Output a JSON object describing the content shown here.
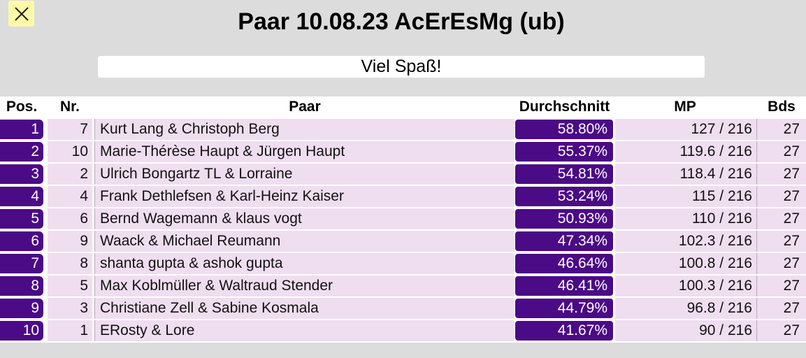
{
  "title": "Paar 10.08.23 AcErEsMg (ub)",
  "banner": "Viel Spaß!",
  "icons": {
    "close": "close-icon"
  },
  "colors": {
    "accent": "#4b0a86",
    "row_bg": "#efdeef",
    "close_bg": "#fdf9a8"
  },
  "table": {
    "headers": {
      "pos": "Pos.",
      "nr": "Nr.",
      "paar": "Paar",
      "avg": "Durchschnitt",
      "mp": "MP",
      "bds": "Bds"
    },
    "rows": [
      {
        "pos": "1",
        "nr": "7",
        "paar": "Kurt Lang & Christoph Berg",
        "avg": "58.80%",
        "mp": "127 / 216",
        "bds": "27"
      },
      {
        "pos": "2",
        "nr": "10",
        "paar": "Marie-Thérèse Haupt & Jürgen Haupt",
        "avg": "55.37%",
        "mp": "119.6 / 216",
        "bds": "27"
      },
      {
        "pos": "3",
        "nr": "2",
        "paar": "Ulrich Bongartz TL & Lorraine",
        "avg": "54.81%",
        "mp": "118.4 / 216",
        "bds": "27"
      },
      {
        "pos": "4",
        "nr": "4",
        "paar": "Frank Dethlefsen & Karl-Heinz Kaiser",
        "avg": "53.24%",
        "mp": "115 / 216",
        "bds": "27"
      },
      {
        "pos": "5",
        "nr": "6",
        "paar": "Bernd Wagemann & klaus vogt",
        "avg": "50.93%",
        "mp": "110 / 216",
        "bds": "27"
      },
      {
        "pos": "6",
        "nr": "9",
        "paar": "Waack & Michael Reumann",
        "avg": "47.34%",
        "mp": "102.3 / 216",
        "bds": "27"
      },
      {
        "pos": "7",
        "nr": "8",
        "paar": "shanta gupta & ashok gupta",
        "avg": "46.64%",
        "mp": "100.8 / 216",
        "bds": "27"
      },
      {
        "pos": "8",
        "nr": "5",
        "paar": "Max Koblmüller & Waltraud Stender",
        "avg": "46.41%",
        "mp": "100.3 / 216",
        "bds": "27"
      },
      {
        "pos": "9",
        "nr": "3",
        "paar": "Christiane Zell & Sabine Kosmala",
        "avg": "44.79%",
        "mp": "96.8 / 216",
        "bds": "27"
      },
      {
        "pos": "10",
        "nr": "1",
        "paar": "ERosty & Lore",
        "avg": "41.67%",
        "mp": "90 / 216",
        "bds": "27"
      }
    ]
  }
}
